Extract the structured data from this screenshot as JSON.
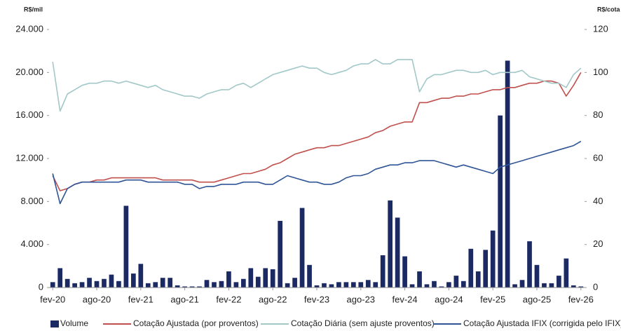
{
  "chart_data": {
    "type": "bar",
    "y_label": "R$/mil",
    "y2_label": "R$/cota",
    "categories": [
      "fev-20",
      null,
      null,
      null,
      null,
      null,
      "ago-20",
      null,
      null,
      null,
      null,
      null,
      "fev-21",
      null,
      null,
      null,
      null,
      null,
      "ago-21",
      null,
      null,
      null,
      null,
      null,
      "fev-22",
      null,
      null,
      null,
      null,
      null,
      "ago-22",
      null,
      null,
      null,
      null,
      null,
      "fev-23",
      null,
      null,
      null,
      null,
      null,
      "ago-23",
      null,
      null,
      null,
      null,
      null,
      "fev-24",
      null,
      null,
      null,
      null,
      null,
      "ago-24",
      null,
      null,
      null,
      null,
      null,
      "fev-25",
      null,
      null,
      null,
      null,
      null,
      "ago-25",
      null,
      null,
      null,
      null,
      null,
      "fev-26"
    ],
    "series": [
      {
        "name": "Volume",
        "type": "bar",
        "color": "#1b2a63",
        "axis": "y",
        "values": [
          500,
          1800,
          800,
          400,
          500,
          900,
          600,
          800,
          1200,
          600,
          7600,
          1300,
          2200,
          400,
          500,
          900,
          900,
          200,
          100,
          100,
          100,
          700,
          500,
          600,
          1500,
          500,
          800,
          1800,
          1000,
          1800,
          1700,
          6200,
          400,
          900,
          7400,
          2100,
          200,
          400,
          300,
          500,
          500,
          500,
          500,
          700,
          500,
          3000,
          8100,
          6500,
          2900,
          300,
          1500,
          300,
          600,
          100,
          500,
          1100,
          600,
          3600,
          1500,
          3500,
          5300,
          16000,
          21100,
          300,
          700,
          4300,
          2100,
          400,
          400,
          1100,
          2700,
          200,
          100
        ]
      },
      {
        "name": "Cotação Ajustada (por proventos)",
        "type": "line",
        "color": "#c0504d",
        "axis": "y2",
        "values": [
          52,
          45,
          46,
          48,
          49,
          49,
          50,
          50,
          51,
          51,
          51,
          51,
          51,
          51,
          51,
          50,
          50,
          50,
          50,
          50,
          49,
          49,
          49,
          50,
          51,
          52,
          53,
          53,
          54,
          55,
          57,
          58,
          60,
          62,
          63,
          64,
          65,
          65,
          66,
          66,
          67,
          68,
          69,
          70,
          72,
          73,
          75,
          76,
          77,
          77,
          86,
          86,
          87,
          88,
          88,
          89,
          89,
          90,
          90,
          91,
          92,
          92,
          93,
          93,
          94,
          95,
          95,
          96,
          96,
          95,
          89,
          94,
          100
        ]
      },
      {
        "name": "Cotação Diária (sem ajuste proventos)",
        "type": "line",
        "color": "#a3c8c8",
        "axis": "y2",
        "values": [
          105,
          82,
          90,
          92,
          94,
          95,
          95,
          96,
          96,
          95,
          96,
          95,
          94,
          93,
          94,
          92,
          91,
          90,
          89,
          89,
          88,
          90,
          91,
          92,
          92,
          94,
          95,
          93,
          95,
          97,
          99,
          100,
          101,
          102,
          103,
          102,
          102,
          100,
          99,
          100,
          101,
          103,
          104,
          104,
          106,
          104,
          104,
          106,
          106,
          106,
          91,
          97,
          99,
          99,
          100,
          101,
          101,
          100,
          100,
          101,
          99,
          100,
          100,
          100,
          101,
          98,
          97,
          96,
          95,
          95,
          93,
          99,
          102
        ]
      },
      {
        "name": "Cotação Ajustada IFIX (corrigida pelo IFIX)",
        "type": "line",
        "color": "#2f5597",
        "axis": "y2",
        "values": [
          53,
          39,
          46,
          48,
          49,
          49,
          49,
          49,
          49,
          49,
          50,
          50,
          50,
          49,
          49,
          49,
          49,
          49,
          48,
          48,
          46,
          47,
          47,
          48,
          48,
          48,
          49,
          49,
          49,
          48,
          48,
          50,
          52,
          51,
          50,
          49,
          49,
          48,
          48,
          49,
          51,
          52,
          52,
          53,
          55,
          56,
          57,
          57,
          58,
          58,
          59,
          59,
          59,
          58,
          57,
          56,
          57,
          56,
          55,
          54,
          53,
          56,
          57,
          58,
          59,
          60,
          61,
          62,
          63,
          64,
          65,
          66,
          68
        ]
      }
    ],
    "ylim": [
      0,
      24000
    ],
    "yticks": [
      0,
      {
        "value": 4000,
        "label": "4.000"
      },
      {
        "value": 8000,
        "label": "8.000"
      },
      {
        "value": 12000,
        "label": "12.000"
      },
      {
        "value": 16000,
        "label": "16.000"
      },
      {
        "value": 20000,
        "label": "20.000"
      },
      {
        "value": 24000,
        "label": "24.000"
      }
    ],
    "y2lim": [
      0,
      120
    ],
    "y2ticks": [
      0,
      20,
      40,
      60,
      80,
      100,
      120
    ],
    "grid": false
  }
}
